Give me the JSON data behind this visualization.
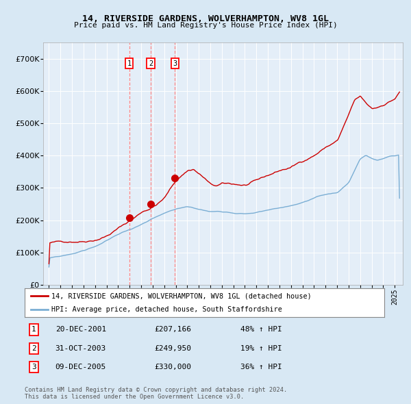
{
  "title": "14, RIVERSIDE GARDENS, WOLVERHAMPTON, WV8 1GL",
  "subtitle": "Price paid vs. HM Land Registry's House Price Index (HPI)",
  "red_label": "14, RIVERSIDE GARDENS, WOLVERHAMPTON, WV8 1GL (detached house)",
  "blue_label": "HPI: Average price, detached house, South Staffordshire",
  "transactions": [
    {
      "num": 1,
      "date": "20-DEC-2001",
      "price": 207166,
      "pct": "48%",
      "dir": "↑"
    },
    {
      "num": 2,
      "date": "31-OCT-2003",
      "price": 249950,
      "pct": "19%",
      "dir": "↑"
    },
    {
      "num": 3,
      "date": "09-DEC-2005",
      "price": 330000,
      "pct": "36%",
      "dir": "↑"
    }
  ],
  "transaction_dates_year": [
    2001.96,
    2003.83,
    2005.93
  ],
  "transaction_prices": [
    207166,
    249950,
    330000
  ],
  "footer": "Contains HM Land Registry data © Crown copyright and database right 2024.\nThis data is licensed under the Open Government Licence v3.0.",
  "bg_color": "#d8e8f4",
  "plot_bg": "#e4eef8",
  "red_color": "#cc0000",
  "blue_color": "#7aaed4",
  "vline_color": "#ff8888",
  "marker_color": "#cc0000",
  "grid_color": "#ffffff",
  "ylim": [
    0,
    750000
  ],
  "yticks": [
    0,
    100000,
    200000,
    300000,
    400000,
    500000,
    600000,
    700000
  ],
  "xlim_start": 1994.5,
  "xlim_end": 2025.7
}
